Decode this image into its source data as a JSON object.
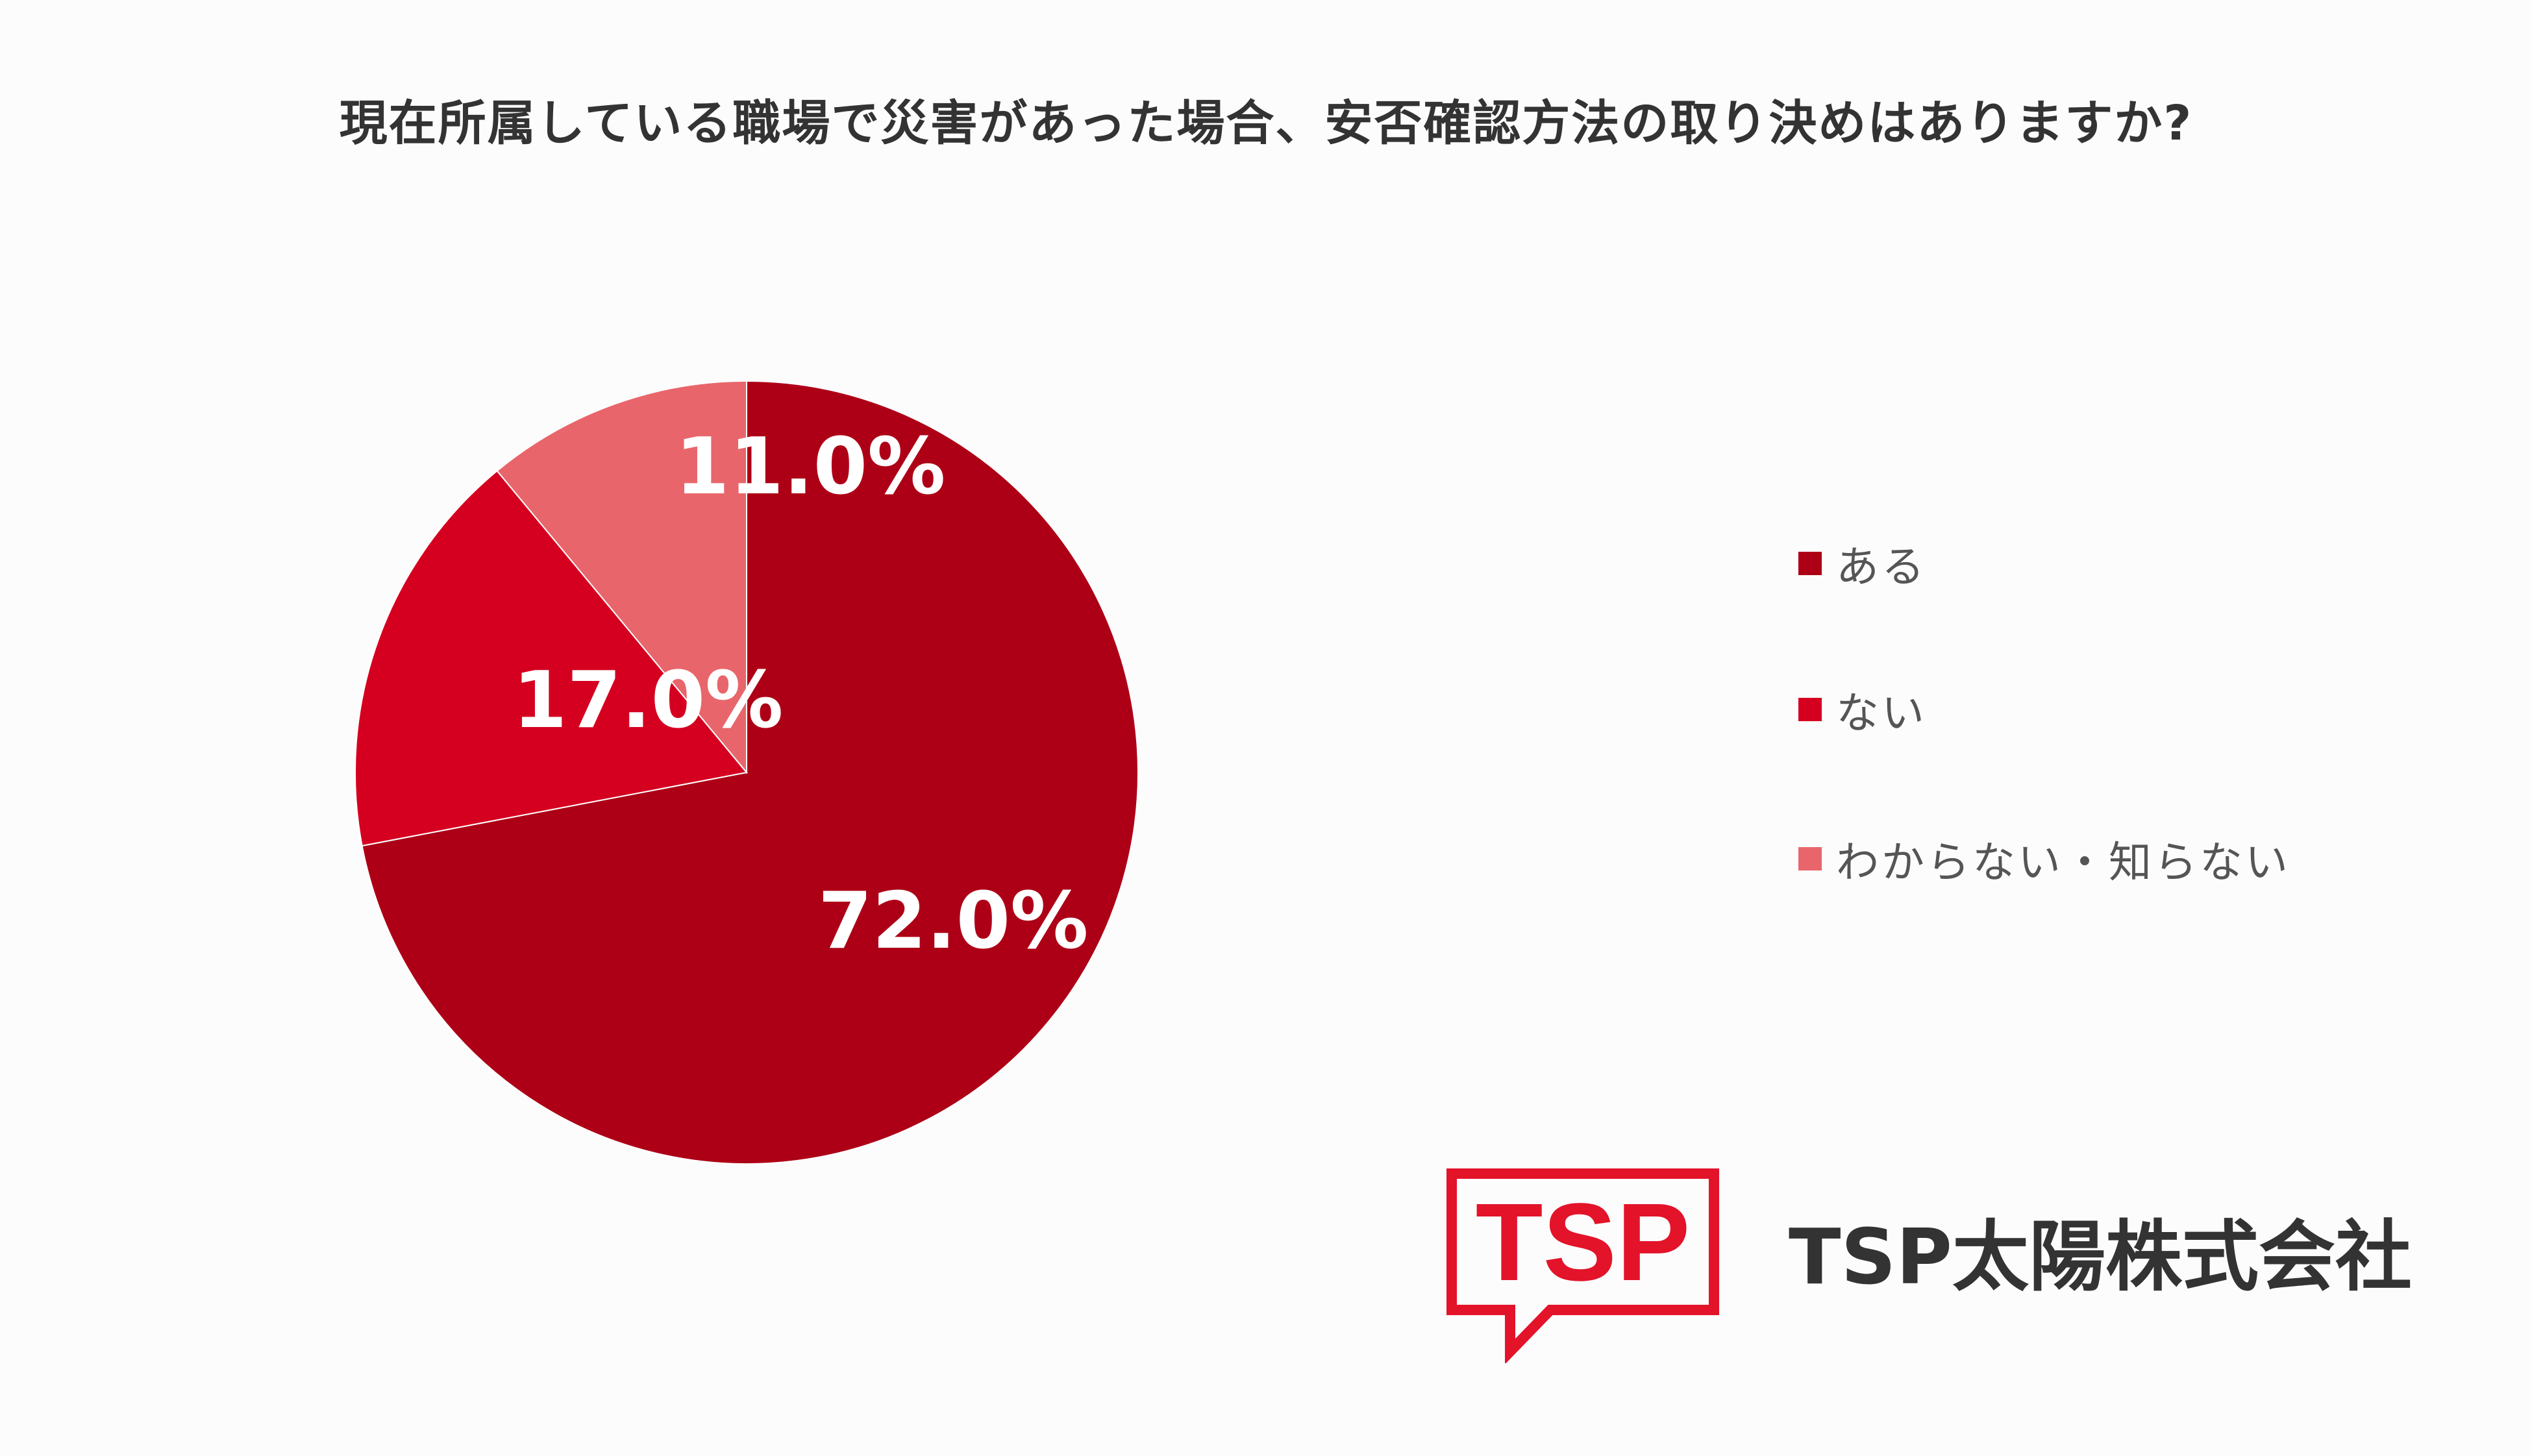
{
  "chart_data": {
    "type": "pie",
    "title": "現在所属している職場で災害があった場合、安否確認方法の取り決めはありますか?",
    "categories": [
      "ある",
      "ない",
      "わからない・知らない"
    ],
    "values": [
      72.0,
      17.0,
      11.0
    ],
    "labels": [
      "72.0%",
      "17.0%",
      "11.0%"
    ],
    "colors": [
      "#ad0016",
      "#d50020",
      "#e8666b"
    ],
    "legend_position": "right"
  },
  "legend": {
    "items": [
      {
        "label": "ある",
        "color": "#ad0016"
      },
      {
        "label": "ない",
        "color": "#d50020"
      },
      {
        "label": "わからない・知らない",
        "color": "#e8666b"
      }
    ]
  },
  "branding": {
    "logo_text": "TSP",
    "company_name": "TSP太陽株式会社",
    "logo_color": "#e3132a"
  }
}
